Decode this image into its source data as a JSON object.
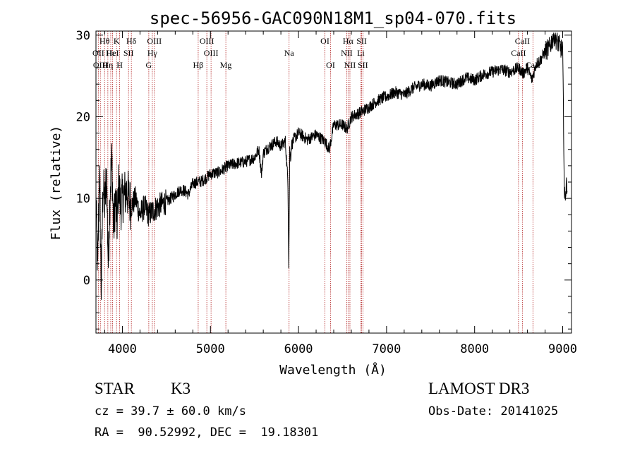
{
  "chart_data": {
    "type": "line",
    "title": "spec-56956-GAC090N18M1_sp04-070.fits",
    "xlabel": "Wavelength (Å)",
    "ylabel": "Flux (relative)",
    "xlim": [
      3700,
      9100
    ],
    "ylim": [
      -6.5,
      30.5
    ],
    "x_ticks": [
      4000,
      5000,
      6000,
      7000,
      8000,
      9000
    ],
    "y_ticks": [
      0,
      10,
      20,
      30
    ],
    "x_tick_labels": [
      "4000",
      "5000",
      "6000",
      "7000",
      "8000",
      "9000"
    ],
    "y_tick_labels": [
      "0",
      "10",
      "20",
      "30"
    ],
    "grid": false,
    "series": [
      {
        "name": "spectrum",
        "x": [
          3700,
          3720,
          3740,
          3760,
          3780,
          3800,
          3820,
          3840,
          3860,
          3880,
          3900,
          3920,
          3940,
          3960,
          3980,
          4000,
          4050,
          4100,
          4150,
          4200,
          4250,
          4300,
          4350,
          4400,
          4450,
          4500,
          4550,
          4600,
          4650,
          4700,
          4750,
          4800,
          4850,
          4900,
          4950,
          5000,
          5100,
          5200,
          5300,
          5400,
          5500,
          5550,
          5580,
          5600,
          5650,
          5700,
          5750,
          5800,
          5850,
          5880,
          5890,
          5900,
          5910,
          5920,
          5950,
          6000,
          6100,
          6200,
          6300,
          6350,
          6400,
          6500,
          6550,
          6600,
          6700,
          6800,
          6900,
          7000,
          7100,
          7200,
          7300,
          7400,
          7500,
          7600,
          7700,
          7800,
          7900,
          8000,
          8100,
          8200,
          8300,
          8400,
          8500,
          8550,
          8600,
          8650,
          8700,
          8750,
          8800,
          8850,
          8900,
          8950,
          9000,
          9020,
          9050
        ],
        "y": [
          10,
          1,
          14,
          -1,
          12,
          9,
          13,
          2,
          11,
          15,
          6,
          10,
          7,
          12,
          9,
          10,
          11,
          9,
          10,
          8,
          9,
          8,
          8.5,
          9,
          9.3,
          9.6,
          10,
          10.5,
          11,
          11,
          10.5,
          11.8,
          12,
          12.1,
          12.5,
          13,
          13.2,
          14,
          14.3,
          14.5,
          15,
          16,
          13,
          15.5,
          16.2,
          16.6,
          17,
          16.4,
          17,
          12,
          2,
          16,
          15,
          16.5,
          17.3,
          18,
          17.2,
          17.8,
          17,
          16,
          19,
          19,
          18.5,
          20,
          20.5,
          21.2,
          22,
          22.5,
          23,
          22.7,
          23.5,
          24,
          23.8,
          24.5,
          24.2,
          24,
          24.8,
          24.5,
          25.2,
          25.5,
          25.8,
          25.5,
          26,
          25.3,
          26,
          24.5,
          26.5,
          27,
          28,
          28.5,
          30,
          29,
          28,
          10,
          12
        ]
      }
    ],
    "lines": [
      {
        "wavelength": 3727,
        "label": "OII",
        "row": 2
      },
      {
        "wavelength": 3750,
        "label": "OIII",
        "row": 3
      },
      {
        "wavelength": 3798,
        "label": "Hθ",
        "row": 1
      },
      {
        "wavelength": 3835,
        "label": "Hη",
        "row": 3
      },
      {
        "wavelength": 3868,
        "label": "Hε",
        "row": 2
      },
      {
        "wavelength": 3889,
        "label": "HeI",
        "row": 2
      },
      {
        "wavelength": 3934,
        "label": "K",
        "row": 1
      },
      {
        "wavelength": 3969,
        "label": "H",
        "row": 3
      },
      {
        "wavelength": 4070,
        "label": "SII",
        "row": 2
      },
      {
        "wavelength": 4102,
        "label": "Hδ",
        "row": 1
      },
      {
        "wavelength": 4300,
        "label": "G",
        "row": 3
      },
      {
        "wavelength": 4340,
        "label": "Hγ",
        "row": 2
      },
      {
        "wavelength": 4363,
        "label": "OIII",
        "row": 1
      },
      {
        "wavelength": 4861,
        "label": "Hβ",
        "row": 3
      },
      {
        "wavelength": 4959,
        "label": "OIII",
        "row": 1
      },
      {
        "wavelength": 5007,
        "label": "OIII",
        "row": 2
      },
      {
        "wavelength": 5175,
        "label": "Mg",
        "row": 3
      },
      {
        "wavelength": 5893,
        "label": "Na",
        "row": 2
      },
      {
        "wavelength": 6300,
        "label": "OI",
        "row": 1
      },
      {
        "wavelength": 6364,
        "label": "OI",
        "row": 3
      },
      {
        "wavelength": 6548,
        "label": "NII",
        "row": 2
      },
      {
        "wavelength": 6563,
        "label": "Hα",
        "row": 1
      },
      {
        "wavelength": 6584,
        "label": "NII",
        "row": 3
      },
      {
        "wavelength": 6708,
        "label": "Li",
        "row": 2
      },
      {
        "wavelength": 6717,
        "label": "SII",
        "row": 1
      },
      {
        "wavelength": 6731,
        "label": "SII",
        "row": 3
      },
      {
        "wavelength": 8498,
        "label": "CaII",
        "row": 2
      },
      {
        "wavelength": 8542,
        "label": "CaII",
        "row": 1
      },
      {
        "wavelength": 8662,
        "label": "CaII",
        "row": 3
      }
    ]
  },
  "info": {
    "class": "STAR",
    "subclass": "K3",
    "survey": "LAMOST DR3",
    "cz": "cz = 39.7 ± 60.0 km/s",
    "obs_date": "Obs-Date: 20141025",
    "coords": "RA =  90.52992, DEC =  19.18301"
  },
  "colors": {
    "line_marker": "#b22222",
    "spectrum": "#000000",
    "axes": "#000000"
  }
}
